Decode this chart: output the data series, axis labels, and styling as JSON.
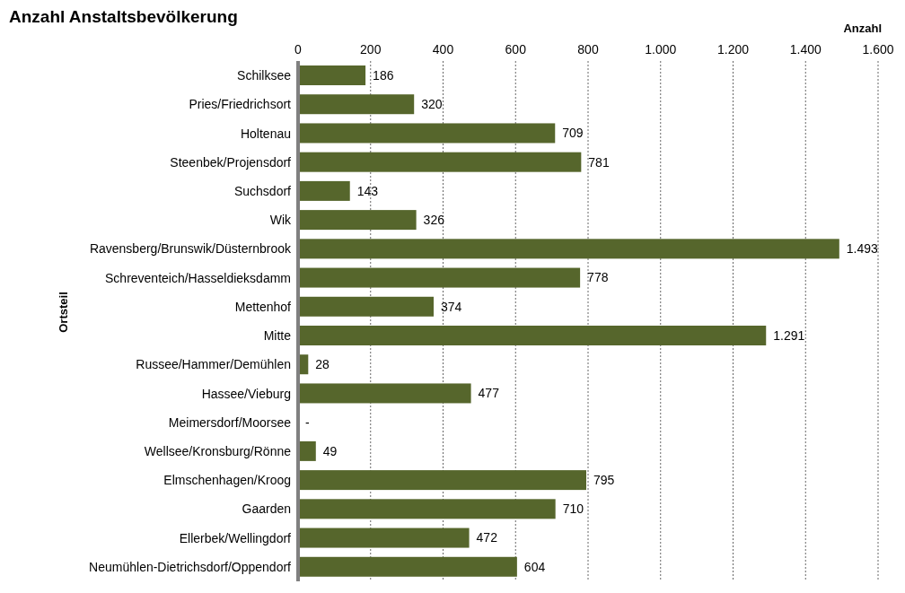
{
  "chart_data": {
    "type": "bar",
    "orientation": "horizontal",
    "title": "Anzahl Anstaltsbevölkerung",
    "xlabel": "Anzahl",
    "ylabel": "Ortsteil",
    "categories": [
      "Schilksee",
      "Pries/Friedrichsort",
      "Holtenau",
      "Steenbek/Projensdorf",
      "Suchsdorf",
      "Wik",
      "Ravensberg/Brunswik/Düsternbrook",
      "Schreventeich/Hasseldieksdamm",
      "Mettenhof",
      "Mitte",
      "Russee/Hammer/Demühlen",
      "Hassee/Vieburg",
      "Meimersdorf/Moorsee",
      "Wellsee/Kronsburg/Rönne",
      "Elmschenhagen/Kroog",
      "Gaarden",
      "Ellerbek/Wellingdorf",
      "Neumühlen-Dietrichsdorf/Oppendorf"
    ],
    "values": [
      186,
      320,
      709,
      781,
      143,
      326,
      1493,
      778,
      374,
      1291,
      28,
      477,
      0,
      49,
      795,
      710,
      472,
      604
    ],
    "value_labels": [
      "186",
      "320",
      "709",
      "781",
      "143",
      "326",
      "1.493",
      "778",
      "374",
      "1.291",
      "28",
      "477",
      "-",
      "49",
      "795",
      "710",
      "472",
      "604"
    ],
    "color": "#56662c",
    "xlim": [
      0,
      1600
    ],
    "xticks": [
      0,
      200,
      400,
      600,
      800,
      {
        "value": 1000,
        "label": "1.000"
      },
      {
        "value": 1200,
        "label": "1.200"
      },
      {
        "value": 1400,
        "label": "1.400"
      },
      {
        "value": 1600,
        "label": "1.600"
      }
    ],
    "grid": "x",
    "legend": false
  }
}
